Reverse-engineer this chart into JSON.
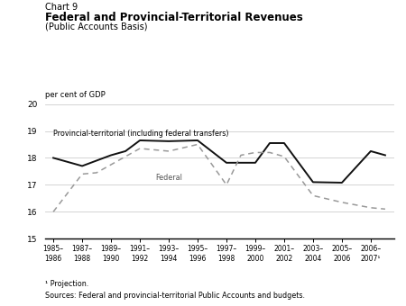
{
  "title_line1": "Chart 9",
  "title_line2": "Federal and Provincial-Territorial Revenues",
  "title_line3": "(Public Accounts Basis)",
  "ylabel": "per cent of GDP",
  "ylim": [
    15,
    20
  ],
  "yticks": [
    15,
    16,
    17,
    18,
    19,
    20
  ],
  "footnote1": "¹ Projection.",
  "footnote2": "Sources: Federal and provincial-territorial Public Accounts and budgets.",
  "x_labels": [
    "1985–\n1986",
    "1987–\n1988",
    "1989–\n1990",
    "1991–\n1992",
    "1993–\n1994",
    "1995–\n1996",
    "1997–\n1998",
    "1999–\n2000",
    "2001–\n2002",
    "2003–\n2004",
    "2005–\n2006",
    "2006–\n2007¹"
  ],
  "provincial_label": "Provincial-territorial (including federal transfers)",
  "federal_label": "Federal",
  "line_color_provincial": "#111111",
  "line_color_federal": "#999999",
  "background_color": "#ffffff",
  "grid_color": "#cccccc",
  "prov_x": [
    0,
    1,
    2,
    2.5,
    3,
    4,
    5,
    6,
    7,
    7.5,
    8,
    9,
    10,
    11,
    11.5
  ],
  "prov_y": [
    18.0,
    17.7,
    18.1,
    18.25,
    18.65,
    18.62,
    18.65,
    17.82,
    17.82,
    18.55,
    18.55,
    17.1,
    17.08,
    18.25,
    18.1
  ],
  "fed_x": [
    0,
    1,
    1.5,
    2,
    3,
    4,
    5,
    6,
    6.5,
    7,
    7.5,
    8,
    9,
    10,
    11,
    11.5
  ],
  "fed_y": [
    16.0,
    17.4,
    17.45,
    17.75,
    18.35,
    18.25,
    18.5,
    17.0,
    18.1,
    18.2,
    18.2,
    18.05,
    16.6,
    16.35,
    16.15,
    16.1
  ]
}
